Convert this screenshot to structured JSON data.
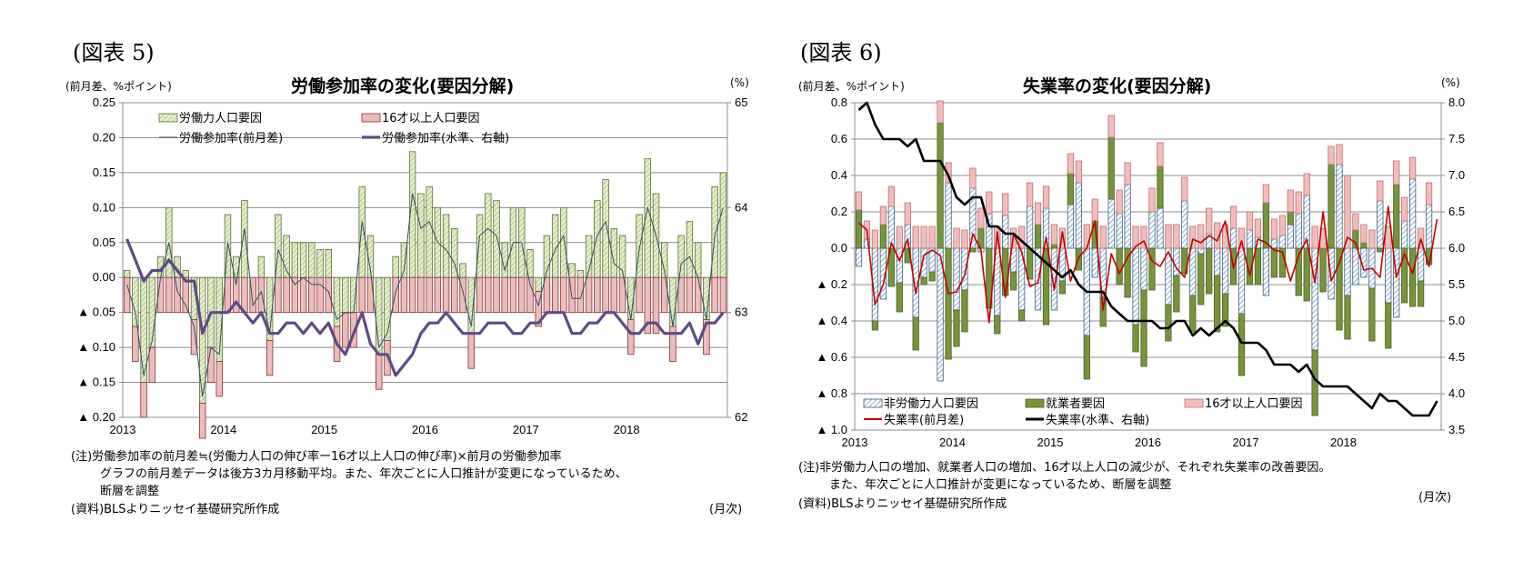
{
  "figures": [
    {
      "label": "(図表 5)",
      "left_unit": "(前月差、%ポイント)",
      "right_unit": "(%)",
      "title": "労働参加率の変化(要因分解)",
      "notes": [
        "(注)労働参加率の前月差≒(労働力人口の伸び率ー16才以上人口の伸び率)×前月の労働参加率",
        "グラフの前月差データは後方3カ月移動平均。また、年次ごとに人口推計が変更になっているため、",
        "断層を調整",
        "(資料)BLSよりニッセイ基礎研究所作成"
      ],
      "x_unit": "(月次)"
    },
    {
      "label": "(図表 6)",
      "left_unit": "(前月差、%ポイント)",
      "right_unit": "(%)",
      "title": "失業率の変化(要因分解)",
      "notes": [
        "(注)非労働力人口の増加、就業者人口の増加、16才以上人口の減少が、それぞれ失業率の改善要因。",
        "また、年次ごとに人口推計が変更になっているため、断層を調整",
        "(資料)BLSよりニッセイ基礎研究所作成"
      ],
      "x_unit": "(月次)"
    }
  ],
  "chart_data": [
    {
      "type": "bar",
      "title": "労働参加率の変化(要因分解)",
      "xlabel": "(月次)",
      "ylabel": "(前月差、%ポイント)",
      "y2label": "(%)",
      "ylim": [
        -0.2,
        0.25
      ],
      "y2lim": [
        62,
        65
      ],
      "yticks": [
        "0.25",
        "0.20",
        "0.15",
        "0.10",
        "0.05",
        "0.00",
        "▲ 0.05",
        "▲ 0.10",
        "▲ 0.15",
        "▲ 0.20"
      ],
      "y2ticks": [
        "65",
        "64",
        "63",
        "62"
      ],
      "xticks": [
        "2013",
        "2014",
        "2015",
        "2016",
        "2017",
        "2018"
      ],
      "grid": true,
      "legend_position": "top",
      "colors": {
        "labor_force": "#d6e4b0",
        "labor_force_border": "#5a7030",
        "pop16": "#e8b4b4",
        "pop16_border": "#8b2a2a",
        "rate_diff": "#2f4f5f",
        "rate_level": "#5e4a86"
      },
      "series": [
        {
          "name": "労働力人口要因",
          "kind": "bar",
          "values": [
            0.01,
            -0.07,
            -0.15,
            -0.1,
            0.03,
            0.1,
            0.03,
            0.01,
            -0.06,
            -0.18,
            -0.1,
            -0.12,
            0.09,
            0.03,
            0.11,
            0.0,
            0.03,
            -0.09,
            0.09,
            0.06,
            0.05,
            0.05,
            0.05,
            0.04,
            0.04,
            -0.07,
            -0.05,
            -0.05,
            0.13,
            0.06,
            -0.11,
            -0.09,
            0.03,
            0.05,
            0.18,
            0.12,
            0.13,
            0.1,
            0.09,
            0.07,
            0.02,
            -0.08,
            0.09,
            0.12,
            0.11,
            0.05,
            0.1,
            0.1,
            0.04,
            -0.02,
            0.06,
            0.09,
            0.1,
            0.02,
            0.01,
            0.06,
            0.11,
            0.14,
            0.07,
            0.06,
            -0.06,
            0.09,
            0.17,
            0.12,
            0.05,
            -0.07,
            0.06,
            0.08,
            0.05,
            -0.06,
            0.13,
            0.15
          ]
        },
        {
          "name": "16才以上人口要因",
          "kind": "bar",
          "values": [
            -0.05,
            -0.05,
            -0.05,
            -0.05,
            -0.05,
            -0.05,
            -0.05,
            -0.05,
            -0.05,
            -0.05,
            -0.05,
            -0.05,
            -0.05,
            -0.05,
            -0.05,
            -0.05,
            -0.05,
            -0.05,
            -0.05,
            -0.05,
            -0.05,
            -0.05,
            -0.05,
            -0.05,
            -0.05,
            -0.05,
            -0.05,
            -0.05,
            -0.05,
            -0.05,
            -0.05,
            -0.05,
            -0.05,
            -0.05,
            -0.05,
            -0.05,
            -0.05,
            -0.05,
            -0.05,
            -0.05,
            -0.05,
            -0.05,
            -0.05,
            -0.05,
            -0.05,
            -0.05,
            -0.05,
            -0.05,
            -0.05,
            -0.05,
            -0.05,
            -0.05,
            -0.05,
            -0.05,
            -0.05,
            -0.05,
            -0.05,
            -0.05,
            -0.05,
            -0.05,
            -0.05,
            -0.05,
            -0.08,
            -0.08,
            -0.05,
            -0.05,
            -0.05,
            -0.05,
            -0.05,
            -0.05,
            -0.05,
            -0.05
          ]
        },
        {
          "name": "労働参加率(前月差)",
          "kind": "line",
          "values": [
            -0.01,
            -0.05,
            -0.14,
            -0.09,
            0.0,
            0.05,
            -0.02,
            -0.04,
            -0.07,
            -0.17,
            -0.1,
            -0.11,
            0.05,
            -0.01,
            0.07,
            -0.04,
            -0.02,
            -0.08,
            0.04,
            0.01,
            -0.01,
            0.0,
            -0.01,
            -0.01,
            -0.02,
            -0.06,
            -0.05,
            -0.05,
            0.08,
            0.01,
            -0.1,
            -0.08,
            -0.02,
            0.01,
            0.12,
            0.07,
            0.08,
            0.05,
            0.04,
            0.02,
            -0.02,
            -0.07,
            0.06,
            0.07,
            0.06,
            0.01,
            0.05,
            0.05,
            -0.01,
            -0.04,
            0.01,
            0.04,
            0.06,
            -0.03,
            -0.03,
            0.01,
            0.06,
            0.08,
            0.02,
            0.01,
            -0.06,
            0.04,
            0.1,
            0.06,
            0.01,
            -0.07,
            0.02,
            0.03,
            0.0,
            -0.06,
            0.06,
            0.1
          ]
        },
        {
          "name": "労働参加率(水準、右軸)",
          "kind": "line",
          "axis": "right",
          "values": [
            63.7,
            63.5,
            63.3,
            63.4,
            63.4,
            63.5,
            63.4,
            63.3,
            63.3,
            62.8,
            63.0,
            63.0,
            63.0,
            63.1,
            63.0,
            62.9,
            63.0,
            62.8,
            62.8,
            62.9,
            62.9,
            62.8,
            62.9,
            62.8,
            62.9,
            62.7,
            62.6,
            62.8,
            63.0,
            62.7,
            62.6,
            62.6,
            62.4,
            62.5,
            62.6,
            62.8,
            62.9,
            62.9,
            63.0,
            62.9,
            62.8,
            62.8,
            62.8,
            62.9,
            62.9,
            62.9,
            62.8,
            62.8,
            62.9,
            62.9,
            63.0,
            63.0,
            63.0,
            62.8,
            62.8,
            62.9,
            62.9,
            63.0,
            63.0,
            62.9,
            62.8,
            62.8,
            62.9,
            62.9,
            62.8,
            62.8,
            62.8,
            62.9,
            62.7,
            62.9,
            62.9,
            63.0
          ]
        }
      ]
    },
    {
      "type": "bar",
      "title": "失業率の変化(要因分解)",
      "xlabel": "(月次)",
      "ylabel": "(前月差、%ポイント)",
      "y2label": "(%)",
      "ylim": [
        -1.0,
        0.8
      ],
      "y2lim": [
        3.5,
        8.0
      ],
      "yticks": [
        "0.8",
        "0.6",
        "0.4",
        "0.2",
        "0.0",
        "▲ 0.2",
        "▲ 0.4",
        "▲ 0.6",
        "▲ 0.8",
        "▲ 1.0"
      ],
      "y2ticks": [
        "8.0",
        "7.5",
        "7.0",
        "6.5",
        "6.0",
        "5.5",
        "5.0",
        "4.5",
        "4.0",
        "3.5"
      ],
      "xticks": [
        "2013",
        "2014",
        "2015",
        "2016",
        "2017",
        "2018"
      ],
      "grid": true,
      "legend_position": "bottom-left",
      "colors": {
        "nonlabor": "#b8cde0",
        "nonlabor_border": "#3b5f82",
        "employed": "#77933c",
        "employed_border": "#4f6228",
        "pop16": "#f2b8b8",
        "pop16_border": "#c07070",
        "rate_diff": "#c00000",
        "rate_level": "#000000"
      },
      "series": [
        {
          "name": "非労働力人口要因",
          "kind": "bar",
          "values": [
            -0.1,
            0.05,
            -0.4,
            -0.28,
            0.23,
            -0.19,
            0.13,
            -0.38,
            -0.16,
            -0.13,
            -0.73,
            0.36,
            -0.34,
            -0.23,
            0.33,
            -0.02,
            0.19,
            -0.37,
            0.18,
            -0.13,
            -0.34,
            0.23,
            -0.34,
            0.22,
            -0.34,
            -0.18,
            0.24,
            0.36,
            -0.48,
            -0.16,
            -0.27,
            0.27,
            0.19,
            0.35,
            -0.42,
            -0.23,
            0.2,
            0.22,
            -0.31,
            -0.15,
            0.26,
            -0.26,
            -0.03,
            0.08,
            -0.15,
            -0.25,
            0.11,
            -0.36,
            0.1,
            0.06,
            -0.26,
            0.05,
            0.07,
            0.13,
            0.19,
            0.29,
            -0.56,
            0.0,
            -0.28,
            0.46,
            -0.26,
            -0.2,
            -0.16,
            -0.22,
            0.26,
            -0.3,
            -0.38,
            0.15,
            0.38,
            -0.18,
            0.24,
            0.0
          ]
        },
        {
          "name": "就業者要因",
          "kind": "bar",
          "values": [
            0.21,
            0.0,
            -0.05,
            0.13,
            -0.21,
            -0.16,
            -0.08,
            -0.18,
            -0.04,
            -0.05,
            0.69,
            -0.61,
            -0.2,
            -0.23,
            -0.02,
            0.11,
            -0.33,
            -0.1,
            -0.26,
            -0.1,
            -0.06,
            -0.17,
            0.13,
            -0.42,
            0.02,
            -0.07,
            0.17,
            -0.12,
            -0.24,
            0.15,
            -0.16,
            0.34,
            -0.2,
            -0.27,
            -0.15,
            -0.42,
            -0.23,
            0.23,
            -0.2,
            -0.2,
            -0.14,
            -0.2,
            -0.28,
            -0.25,
            -0.31,
            -0.18,
            -0.2,
            -0.34,
            -0.2,
            -0.2,
            0.25,
            -0.16,
            -0.16,
            0.07,
            -0.26,
            -0.29,
            -0.36,
            -0.24,
            0.46,
            -0.45,
            -0.24,
            0.1,
            0.03,
            -0.29,
            -0.02,
            -0.25,
            0.35,
            -0.3,
            -0.32,
            -0.14,
            -0.09,
            0.0
          ]
        },
        {
          "name": "16才以上人口要因",
          "kind": "bar",
          "values": [
            0.1,
            0.1,
            0.1,
            0.1,
            0.11,
            0.12,
            0.12,
            0.12,
            0.12,
            0.12,
            0.12,
            0.11,
            0.11,
            0.1,
            0.11,
            0.11,
            0.12,
            0.12,
            0.12,
            0.11,
            0.12,
            0.13,
            0.12,
            0.12,
            0.11,
            0.11,
            0.11,
            0.12,
            0.13,
            0.12,
            0.12,
            0.12,
            0.13,
            0.12,
            0.12,
            0.12,
            0.13,
            0.13,
            0.13,
            0.13,
            0.13,
            0.12,
            0.13,
            0.14,
            0.14,
            0.13,
            0.12,
            0.11,
            0.1,
            0.1,
            0.1,
            0.11,
            0.11,
            0.12,
            0.12,
            0.12,
            0.12,
            0.11,
            0.1,
            0.11,
            0.4,
            0.09,
            0.1,
            0.1,
            0.11,
            0.12,
            0.13,
            0.13,
            0.12,
            0.11,
            0.12,
            0.0
          ]
        },
        {
          "name": "失業率(前月差)",
          "kind": "line",
          "values": [
            0.14,
            0.1,
            -0.31,
            -0.2,
            0.03,
            -0.07,
            0.05,
            -0.25,
            -0.04,
            -0.01,
            -0.04,
            -0.25,
            -0.24,
            -0.15,
            0.08,
            -0.01,
            -0.41,
            0.09,
            -0.27,
            0.08,
            -0.02,
            -0.21,
            -0.19,
            0.06,
            -0.23,
            0.09,
            -0.18,
            -0.05,
            0.0,
            0.15,
            -0.34,
            -0.03,
            -0.14,
            -0.05,
            0.01,
            0.04,
            -0.07,
            -0.1,
            -0.02,
            -0.11,
            -0.16,
            0.05,
            0.03,
            0.07,
            0.04,
            0.15,
            -0.11,
            0.04,
            -0.15,
            0.05,
            0.03,
            -0.01,
            -0.02,
            -0.18,
            -0.04,
            0.05,
            -0.19,
            0.2,
            -0.18,
            -0.08,
            0.06,
            0.03,
            -0.12,
            -0.11,
            -0.16,
            0.23,
            -0.16,
            -0.03,
            -0.14,
            0.05,
            -0.1,
            0.16
          ]
        },
        {
          "name": "失業率(水準、右軸)",
          "kind": "line",
          "axis": "right",
          "values": [
            7.9,
            8.0,
            7.7,
            7.5,
            7.5,
            7.5,
            7.4,
            7.5,
            7.2,
            7.2,
            7.2,
            7.0,
            6.7,
            6.6,
            6.7,
            6.7,
            6.3,
            6.3,
            6.2,
            6.2,
            6.1,
            6.0,
            5.9,
            5.8,
            5.7,
            5.6,
            5.7,
            5.5,
            5.4,
            5.4,
            5.4,
            5.2,
            5.1,
            5.0,
            5.0,
            5.0,
            5.0,
            4.9,
            4.9,
            5.0,
            5.0,
            4.8,
            4.9,
            4.8,
            4.9,
            5.0,
            4.9,
            4.7,
            4.7,
            4.7,
            4.6,
            4.4,
            4.4,
            4.4,
            4.3,
            4.4,
            4.2,
            4.1,
            4.1,
            4.1,
            4.1,
            4.0,
            3.9,
            3.8,
            4.0,
            3.9,
            3.9,
            3.8,
            3.7,
            3.7,
            3.7,
            3.9
          ]
        }
      ]
    }
  ]
}
